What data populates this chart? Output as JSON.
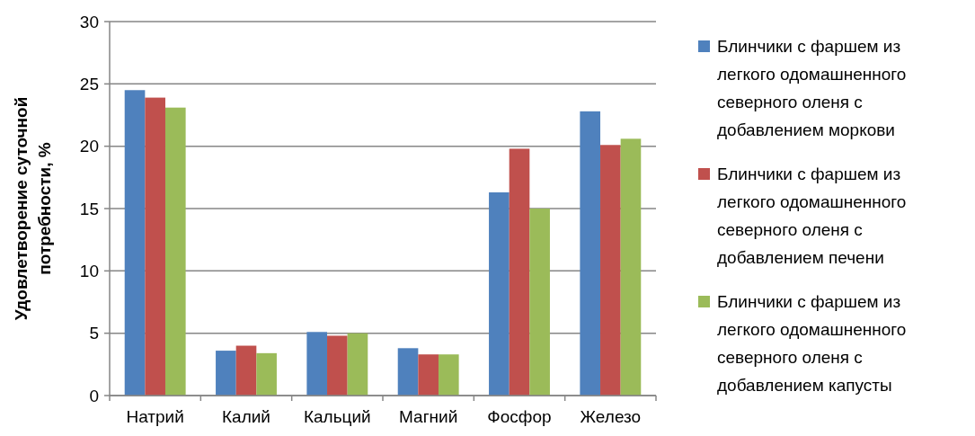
{
  "chart_data": {
    "type": "bar",
    "ylabel": "Удовлетворение суточной потребности, %",
    "categories": [
      "Натрий",
      "Калий",
      "Кальций",
      "Магний",
      "Фосфор",
      "Железо"
    ],
    "series": [
      {
        "name": "Блинчики с фаршем из легкого одомашненного северного оленя с добавлением моркови",
        "color": "#4f81bd",
        "values": [
          24.5,
          3.6,
          5.1,
          3.8,
          16.3,
          22.8
        ]
      },
      {
        "name": "Блинчики с фаршем из легкого одомашненного северного оленя с добавлением печени",
        "color": "#c0504d",
        "values": [
          23.9,
          4.0,
          4.8,
          3.3,
          19.8,
          20.1
        ]
      },
      {
        "name": "Блинчики с фаршем из легкого одомашненного северного оленя с добавлением капусты",
        "color": "#9bbb59",
        "values": [
          23.1,
          3.4,
          5.0,
          3.3,
          15.0,
          20.6
        ]
      }
    ],
    "ylim": [
      0,
      30
    ],
    "yticks": [
      0,
      5,
      10,
      15,
      20,
      25,
      30
    ],
    "grid": "y",
    "legend": "right"
  }
}
